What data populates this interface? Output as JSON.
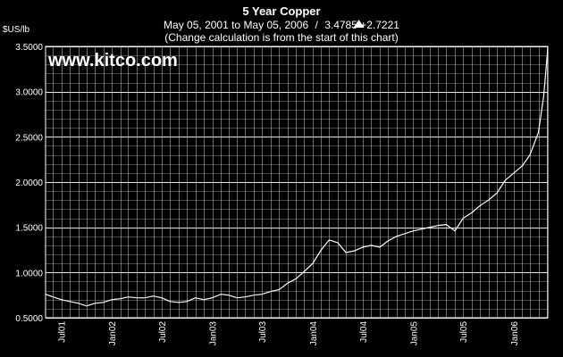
{
  "chart_data": {
    "type": "line",
    "title": "5 Year Copper",
    "subtitle": {
      "range": "May 05, 2001 to May 05, 2006",
      "separator": "/",
      "last_value": "3.4785",
      "change": "+2.7221",
      "change_icon": "up-triangle-icon",
      "note": "(Change calculation is from the start of this chart)"
    },
    "watermark": "www.kitco.com",
    "ylabel": "$US/lb",
    "ylim": [
      0.5,
      3.5
    ],
    "yticks": [
      "0.5000",
      "1.0000",
      "1.5000",
      "2.0000",
      "2.5000",
      "3.0000",
      "3.5000"
    ],
    "xlim": [
      "2001-05-05",
      "2006-05-05"
    ],
    "xticks": [
      {
        "label": "Jul01",
        "date": "2001-07-01"
      },
      {
        "label": "Jan02",
        "date": "2002-01-01"
      },
      {
        "label": "Jul02",
        "date": "2002-07-01"
      },
      {
        "label": "Jan03",
        "date": "2003-01-01"
      },
      {
        "label": "Jul03",
        "date": "2003-07-01"
      },
      {
        "label": "Jan04",
        "date": "2004-01-01"
      },
      {
        "label": "Jul04",
        "date": "2004-07-01"
      },
      {
        "label": "Jan05",
        "date": "2005-01-01"
      },
      {
        "label": "Jul05",
        "date": "2005-07-01"
      },
      {
        "label": "Jan06",
        "date": "2006-01-01"
      }
    ],
    "grid": true,
    "colors": {
      "background": "#000000",
      "grid": "#ffffff",
      "line": "#ffffff",
      "text": "#ffffff"
    },
    "series": [
      {
        "x": [
          "2001-05-05",
          "2001-06-01",
          "2001-07-01",
          "2001-08-01",
          "2001-09-01",
          "2001-10-01",
          "2001-11-01",
          "2001-12-01",
          "2002-01-01",
          "2002-02-01",
          "2002-03-01",
          "2002-04-01",
          "2002-05-01",
          "2002-06-01",
          "2002-07-01",
          "2002-08-01",
          "2002-09-01",
          "2002-10-01",
          "2002-11-01",
          "2002-12-01",
          "2003-01-01",
          "2003-02-01",
          "2003-03-01",
          "2003-04-01",
          "2003-05-01",
          "2003-06-01",
          "2003-07-01",
          "2003-08-01",
          "2003-09-01",
          "2003-10-01",
          "2003-11-01",
          "2003-12-01",
          "2004-01-01",
          "2004-02-01",
          "2004-03-01",
          "2004-04-01",
          "2004-05-01",
          "2004-06-01",
          "2004-07-01",
          "2004-08-01",
          "2004-09-01",
          "2004-10-01",
          "2004-11-01",
          "2004-12-01",
          "2005-01-01",
          "2005-02-01",
          "2005-03-01",
          "2005-04-01",
          "2005-05-01",
          "2005-06-01",
          "2005-07-01",
          "2005-08-01",
          "2005-09-01",
          "2005-10-01",
          "2005-11-01",
          "2005-12-01",
          "2006-01-01",
          "2006-02-01",
          "2006-03-01",
          "2006-04-01",
          "2006-04-20",
          "2006-05-05"
        ],
        "y": [
          0.76,
          0.73,
          0.7,
          0.68,
          0.66,
          0.63,
          0.66,
          0.67,
          0.7,
          0.71,
          0.73,
          0.72,
          0.72,
          0.74,
          0.72,
          0.68,
          0.67,
          0.68,
          0.72,
          0.7,
          0.72,
          0.76,
          0.75,
          0.72,
          0.73,
          0.75,
          0.76,
          0.79,
          0.81,
          0.88,
          0.93,
          1.01,
          1.1,
          1.25,
          1.36,
          1.33,
          1.22,
          1.24,
          1.28,
          1.3,
          1.28,
          1.35,
          1.4,
          1.43,
          1.46,
          1.48,
          1.5,
          1.52,
          1.53,
          1.46,
          1.6,
          1.66,
          1.74,
          1.8,
          1.88,
          2.02,
          2.1,
          2.18,
          2.3,
          2.55,
          2.95,
          3.48
        ]
      }
    ]
  }
}
